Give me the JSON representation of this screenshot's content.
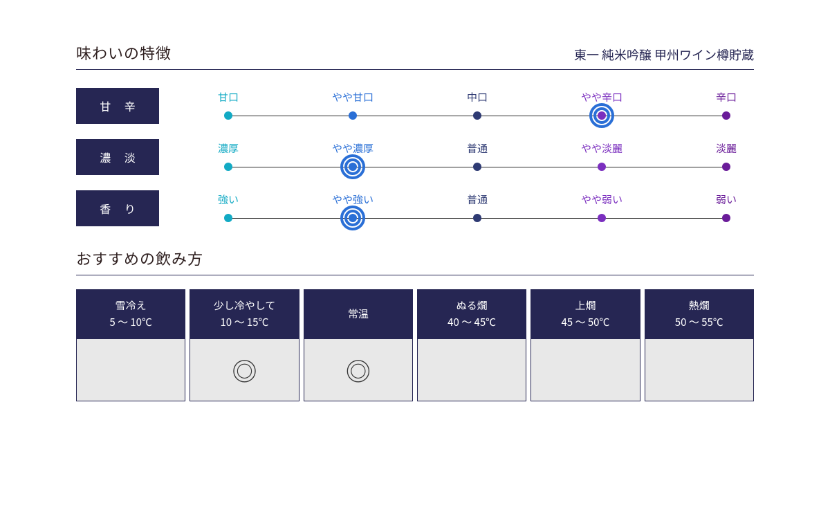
{
  "colors": {
    "navy": "#262653",
    "title_text": "#2f2020",
    "rule": "#262653",
    "dot1": "#12aac4",
    "dot2": "#2a6fd6",
    "dot3": "#2e3a73",
    "dot4": "#7b2fbf",
    "dot5": "#6a1c99",
    "ring": "#2a6fd6",
    "serving_body_bg": "#e8e8e8",
    "mark_color": "#333333"
  },
  "taste": {
    "section_title": "味わいの特徴",
    "product_name": "東一 純米吟醸 甲州ワイン樽貯蔵",
    "rows": [
      {
        "label": "甘 辛",
        "options": [
          "甘口",
          "やや甘口",
          "中口",
          "やや辛口",
          "辛口"
        ],
        "selected_index": 3
      },
      {
        "label": "濃 淡",
        "options": [
          "濃厚",
          "やや濃厚",
          "普通",
          "やや淡麗",
          "淡麗"
        ],
        "selected_index": 1
      },
      {
        "label": "香 り",
        "options": [
          "強い",
          "やや強い",
          "普通",
          "やや弱い",
          "弱い"
        ],
        "selected_index": 1
      }
    ],
    "option_label_colors": [
      "#12aac4",
      "#2a6fd6",
      "#2e3a73",
      "#7b2fbf",
      "#6a1c99"
    ]
  },
  "serving": {
    "section_title": "おすすめの飲み方",
    "columns": [
      {
        "name": "雪冷え",
        "temp": "5 ～ 10℃",
        "mark": ""
      },
      {
        "name": "少し冷やして",
        "temp": "10 ～ 15℃",
        "mark": "◎"
      },
      {
        "name": "常温",
        "temp": "",
        "mark": "◎"
      },
      {
        "name": "ぬる燗",
        "temp": "40 ～ 45℃",
        "mark": ""
      },
      {
        "name": "上燗",
        "temp": "45 ～ 50℃",
        "mark": ""
      },
      {
        "name": "熱燗",
        "temp": "50 ～ 55℃",
        "mark": ""
      }
    ]
  }
}
